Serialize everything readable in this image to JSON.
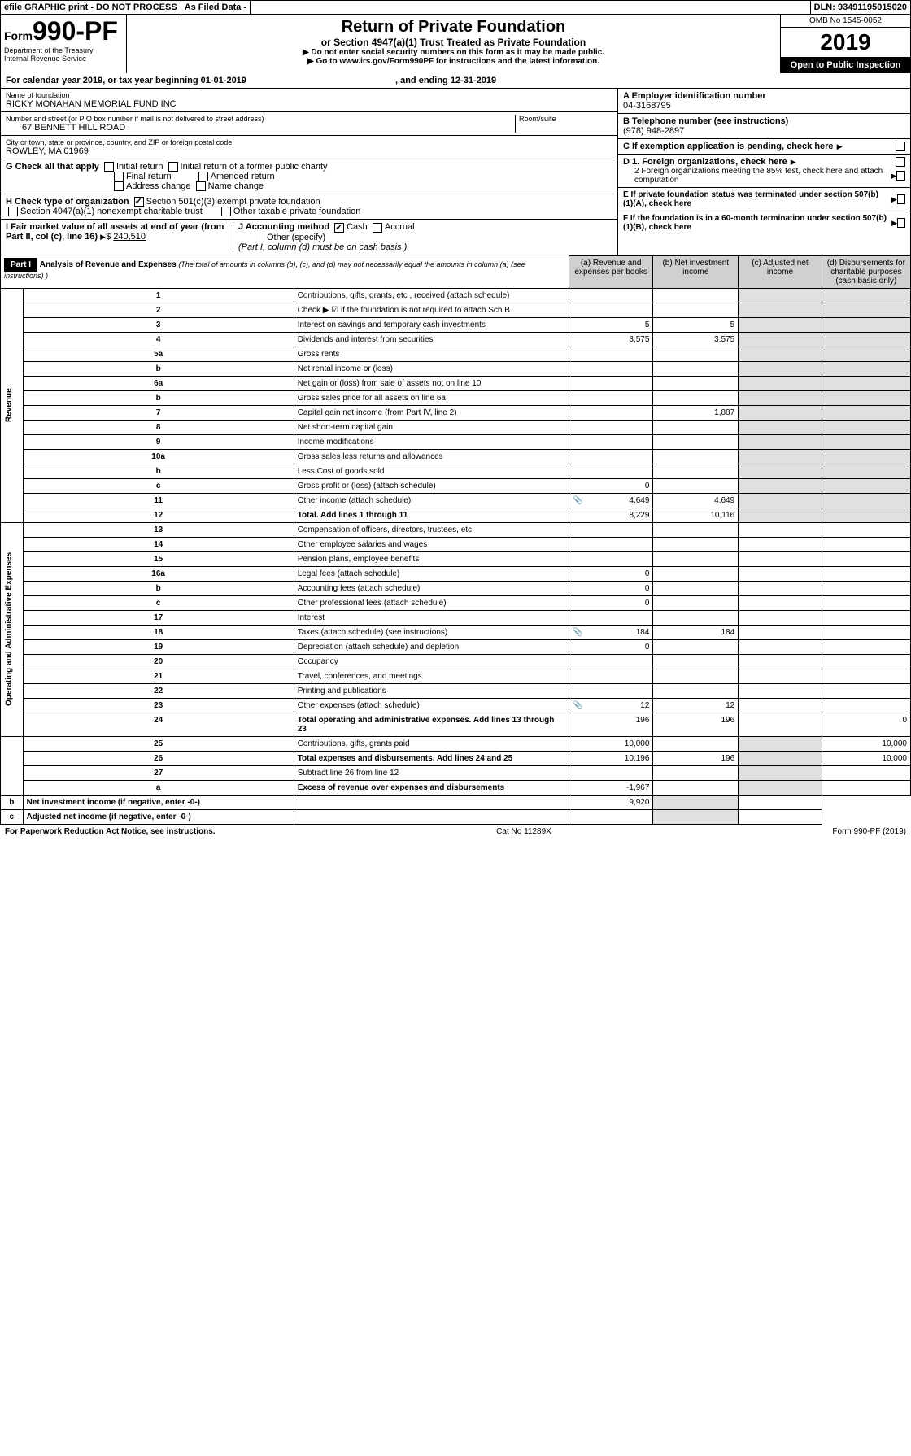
{
  "header": {
    "efile": "efile GRAPHIC print - DO NOT PROCESS",
    "as_filed": "As Filed Data -",
    "dln_label": "DLN:",
    "dln": "93491195015020",
    "form_prefix": "Form",
    "form_number": "990-PF",
    "dept1": "Department of the Treasury",
    "dept2": "Internal Revenue Service",
    "title": "Return of Private Foundation",
    "subtitle": "or Section 4947(a)(1) Trust Treated as Private Foundation",
    "instr1": "▶ Do not enter social security numbers on this form as it may be made public.",
    "instr2": "▶ Go to www.irs.gov/Form990PF for instructions and the latest information.",
    "omb": "OMB No 1545-0052",
    "year": "2019",
    "open_public": "Open to Public Inspection"
  },
  "cal_year": {
    "text": "For calendar year 2019, or tax year beginning 01-01-2019",
    "ending": ", and ending 12-31-2019"
  },
  "foundation": {
    "name_label": "Name of foundation",
    "name": "RICKY MONAHAN MEMORIAL FUND INC",
    "addr_label": "Number and street (or P O  box number if mail is not delivered to street address)",
    "addr": "67 BENNETT HILL ROAD",
    "room_label": "Room/suite",
    "city_label": "City or town, state or province, country, and ZIP or foreign postal code",
    "city": "ROWLEY, MA  01969"
  },
  "right_boxes": {
    "a_label": "A Employer identification number",
    "a_val": "04-3168795",
    "b_label": "B Telephone number (see instructions)",
    "b_val": "(978) 948-2897",
    "c_label": "C If exemption application is pending, check here",
    "d1": "D 1. Foreign organizations, check here",
    "d2": "2  Foreign organizations meeting the 85% test, check here and attach computation",
    "e": "E  If private foundation status was terminated under section 507(b)(1)(A), check here",
    "f": "F  If the foundation is in a 60-month termination under section 507(b)(1)(B), check here"
  },
  "section_g": {
    "g_label": "G Check all that apply",
    "initial": "Initial return",
    "initial_former": "Initial return of a former public charity",
    "final": "Final return",
    "amended": "Amended return",
    "addr_change": "Address change",
    "name_change": "Name change",
    "h_label": "H Check type of organization",
    "h_501c3": "Section 501(c)(3) exempt private foundation",
    "h_4947": "Section 4947(a)(1) nonexempt charitable trust",
    "h_other": "Other taxable private foundation",
    "i_label": "I Fair market value of all assets at end of year (from Part II, col  (c), line 16)",
    "i_val": "240,510",
    "j_label": "J Accounting method",
    "j_cash": "Cash",
    "j_accrual": "Accrual",
    "j_other": "Other (specify)",
    "j_note": "(Part I, column (d) must be on cash basis )"
  },
  "part1": {
    "label": "Part I",
    "title": "Analysis of Revenue and Expenses",
    "title_note": "(The total of amounts in columns (b), (c), and (d) may not necessarily equal the amounts in column (a) (see instructions) )",
    "col_a": "(a) Revenue and expenses per books",
    "col_b": "(b) Net investment income",
    "col_c": "(c) Adjusted net income",
    "col_d": "(d) Disbursements for charitable purposes (cash basis only)"
  },
  "revenue_label": "Revenue",
  "expenses_label": "Operating and Administrative Expenses",
  "rows": [
    {
      "n": "1",
      "d": "Contributions, gifts, grants, etc , received (attach schedule)"
    },
    {
      "n": "2",
      "d": "Check ▶ ☑ if the foundation is not required to attach Sch B"
    },
    {
      "n": "3",
      "d": "Interest on savings and temporary cash investments",
      "a": "5",
      "b": "5"
    },
    {
      "n": "4",
      "d": "Dividends and interest from securities",
      "a": "3,575",
      "b": "3,575"
    },
    {
      "n": "5a",
      "d": "Gross rents"
    },
    {
      "n": "b",
      "d": "Net rental income or (loss)"
    },
    {
      "n": "6a",
      "d": "Net gain or (loss) from sale of assets not on line 10"
    },
    {
      "n": "b",
      "d": "Gross sales price for all assets on line 6a"
    },
    {
      "n": "7",
      "d": "Capital gain net income (from Part IV, line 2)",
      "b": "1,887"
    },
    {
      "n": "8",
      "d": "Net short-term capital gain"
    },
    {
      "n": "9",
      "d": "Income modifications"
    },
    {
      "n": "10a",
      "d": "Gross sales less returns and allowances"
    },
    {
      "n": "b",
      "d": "Less  Cost of goods sold"
    },
    {
      "n": "c",
      "d": "Gross profit or (loss) (attach schedule)",
      "a": "0"
    },
    {
      "n": "11",
      "d": "Other income (attach schedule)",
      "a": "4,649",
      "b": "4,649",
      "icon": true
    },
    {
      "n": "12",
      "d": "Total. Add lines 1 through 11",
      "a": "8,229",
      "b": "10,116",
      "bold": true
    },
    {
      "n": "13",
      "d": "Compensation of officers, directors, trustees, etc"
    },
    {
      "n": "14",
      "d": "Other employee salaries and wages"
    },
    {
      "n": "15",
      "d": "Pension plans, employee benefits"
    },
    {
      "n": "16a",
      "d": "Legal fees (attach schedule)",
      "a": "0"
    },
    {
      "n": "b",
      "d": "Accounting fees (attach schedule)",
      "a": "0"
    },
    {
      "n": "c",
      "d": "Other professional fees (attach schedule)",
      "a": "0"
    },
    {
      "n": "17",
      "d": "Interest"
    },
    {
      "n": "18",
      "d": "Taxes (attach schedule) (see instructions)",
      "a": "184",
      "b": "184",
      "icon": true
    },
    {
      "n": "19",
      "d": "Depreciation (attach schedule) and depletion",
      "a": "0"
    },
    {
      "n": "20",
      "d": "Occupancy"
    },
    {
      "n": "21",
      "d": "Travel, conferences, and meetings"
    },
    {
      "n": "22",
      "d": "Printing and publications"
    },
    {
      "n": "23",
      "d": "Other expenses (attach schedule)",
      "a": "12",
      "b": "12",
      "icon": true
    },
    {
      "n": "24",
      "d": "Total operating and administrative expenses. Add lines 13 through 23",
      "a": "196",
      "b": "196",
      "dd": "0",
      "bold": true
    },
    {
      "n": "25",
      "d": "Contributions, gifts, grants paid",
      "a": "10,000",
      "dd": "10,000"
    },
    {
      "n": "26",
      "d": "Total expenses and disbursements. Add lines 24 and 25",
      "a": "10,196",
      "b": "196",
      "dd": "10,000",
      "bold": true
    },
    {
      "n": "27",
      "d": "Subtract line 26 from line 12"
    },
    {
      "n": "a",
      "d": "Excess of revenue over expenses and disbursements",
      "a": "-1,967",
      "bold": true
    },
    {
      "n": "b",
      "d": "Net investment income (if negative, enter -0-)",
      "b": "9,920",
      "bold": true
    },
    {
      "n": "c",
      "d": "Adjusted net income (if negative, enter -0-)",
      "bold": true
    }
  ],
  "footer": {
    "left": "For Paperwork Reduction Act Notice, see instructions.",
    "mid": "Cat  No  11289X",
    "right": "Form 990-PF (2019)"
  }
}
